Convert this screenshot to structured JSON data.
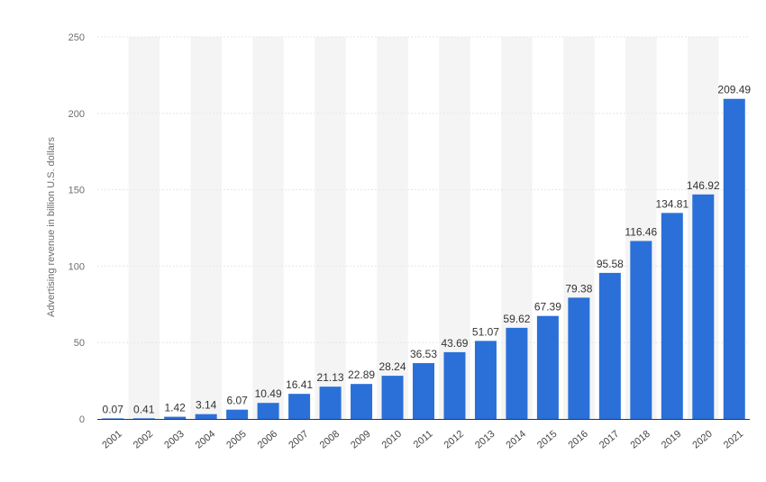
{
  "chart_data": {
    "type": "bar",
    "ylabel": "Advertising revenue in billion U.S. dollars",
    "ylim": [
      0,
      250
    ],
    "y_ticks": [
      0,
      50,
      100,
      150,
      200,
      250
    ],
    "grid": true,
    "categories": [
      "2001",
      "2002",
      "2003",
      "2004",
      "2005",
      "2006",
      "2007",
      "2008",
      "2009",
      "2010",
      "2011",
      "2012",
      "2013",
      "2014",
      "2015",
      "2016",
      "2017",
      "2018",
      "2019",
      "2020",
      "2021"
    ],
    "values": [
      0.07,
      0.41,
      1.42,
      3.14,
      6.07,
      10.49,
      16.41,
      21.13,
      22.89,
      28.24,
      36.53,
      43.69,
      51.07,
      59.62,
      67.39,
      79.38,
      95.58,
      116.46,
      134.81,
      146.92,
      209.49
    ],
    "value_labels": [
      "0.07",
      "0.41",
      "1.42",
      "3.14",
      "6.07",
      "10.49",
      "16.41",
      "21.13",
      "22.89",
      "28.24",
      "36.53",
      "43.69",
      "51.07",
      "59.62",
      "67.39",
      "79.38",
      "95.58",
      "116.46",
      "134.81",
      "146.92",
      "209.49"
    ],
    "colors": {
      "bar": "#2a70d8",
      "band": "#f4f4f4",
      "grid": "#e6e6e6",
      "baseline": "#333333"
    }
  }
}
